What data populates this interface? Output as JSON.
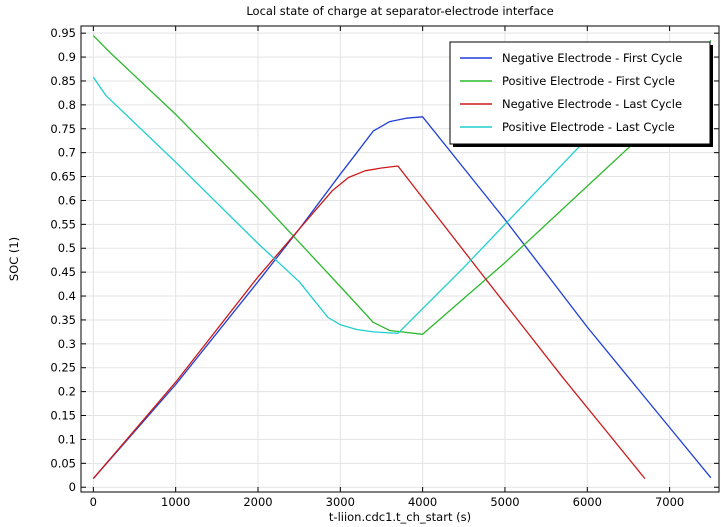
{
  "chart_data": {
    "type": "line",
    "title": "Local state of charge at separator-electrode interface",
    "xlabel": "t-liion.cdc1.t_ch_start (s)",
    "ylabel": "SOC (1)",
    "xlim": [
      -150,
      7600
    ],
    "ylim": [
      -0.01,
      0.965
    ],
    "x_ticks": [
      0,
      1000,
      2000,
      3000,
      4000,
      5000,
      6000,
      7000
    ],
    "x_tick_labels": [
      "0",
      "1000",
      "2000",
      "3000",
      "4000",
      "5000",
      "6000",
      "7000"
    ],
    "y_ticks": [
      0,
      0.05,
      0.1,
      0.15,
      0.2,
      0.25,
      0.3,
      0.35,
      0.4,
      0.45,
      0.5,
      0.55,
      0.6,
      0.65,
      0.7,
      0.75,
      0.8,
      0.85,
      0.9,
      0.95
    ],
    "y_tick_labels": [
      "0",
      "0.05",
      "0.1",
      "0.15",
      "0.2",
      "0.25",
      "0.3",
      "0.35",
      "0.4",
      "0.45",
      "0.5",
      "0.55",
      "0.6",
      "0.65",
      "0.7",
      "0.75",
      "0.8",
      "0.85",
      "0.9",
      "0.95"
    ],
    "grid": true,
    "legend_position": "top-right",
    "series": [
      {
        "name": "Negative Electrode - First Cycle",
        "color": "#1f3fd8",
        "points": [
          [
            0,
            0.018
          ],
          [
            1000,
            0.215
          ],
          [
            2000,
            0.43
          ],
          [
            2500,
            0.54
          ],
          [
            3000,
            0.655
          ],
          [
            3200,
            0.7
          ],
          [
            3400,
            0.745
          ],
          [
            3600,
            0.765
          ],
          [
            3800,
            0.772
          ],
          [
            4000,
            0.775
          ],
          [
            5000,
            0.56
          ],
          [
            6000,
            0.335
          ],
          [
            6500,
            0.23
          ],
          [
            7000,
            0.125
          ],
          [
            7500,
            0.02
          ]
        ]
      },
      {
        "name": "Positive Electrode - First Cycle",
        "color": "#2db82d",
        "points": [
          [
            0,
            0.945
          ],
          [
            200,
            0.91
          ],
          [
            1000,
            0.78
          ],
          [
            2000,
            0.605
          ],
          [
            3000,
            0.42
          ],
          [
            3400,
            0.345
          ],
          [
            3600,
            0.328
          ],
          [
            4000,
            0.32
          ],
          [
            5000,
            0.47
          ],
          [
            6000,
            0.63
          ],
          [
            7000,
            0.79
          ],
          [
            7500,
            0.935
          ]
        ]
      },
      {
        "name": "Negative Electrode - Last Cycle",
        "color": "#cc1a1a",
        "points": [
          [
            0,
            0.018
          ],
          [
            1000,
            0.22
          ],
          [
            2000,
            0.44
          ],
          [
            2600,
            0.56
          ],
          [
            2900,
            0.62
          ],
          [
            3100,
            0.648
          ],
          [
            3300,
            0.662
          ],
          [
            3500,
            0.668
          ],
          [
            3700,
            0.672
          ],
          [
            4700,
            0.45
          ],
          [
            5700,
            0.23
          ],
          [
            6700,
            0.018
          ]
        ]
      },
      {
        "name": "Positive Electrode - Last Cycle",
        "color": "#1fcfcf",
        "points": [
          [
            0,
            0.858
          ],
          [
            150,
            0.82
          ],
          [
            1000,
            0.68
          ],
          [
            2000,
            0.51
          ],
          [
            2500,
            0.43
          ],
          [
            2850,
            0.355
          ],
          [
            3000,
            0.34
          ],
          [
            3200,
            0.33
          ],
          [
            3400,
            0.325
          ],
          [
            3700,
            0.322
          ],
          [
            4500,
            0.46
          ],
          [
            5500,
            0.64
          ],
          [
            6000,
            0.73
          ],
          [
            6500,
            0.82
          ]
        ]
      }
    ]
  }
}
